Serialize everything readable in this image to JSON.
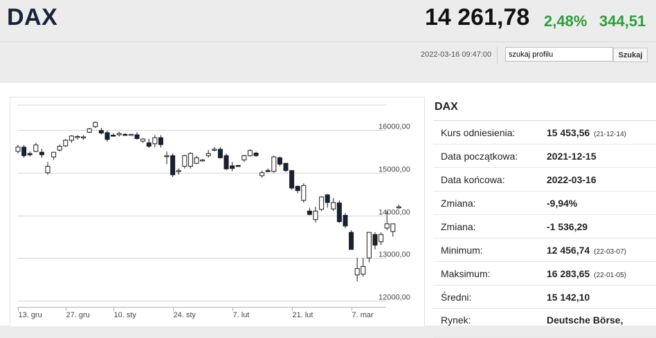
{
  "header": {
    "title": "DAX",
    "price": "14 261,78",
    "change_pct": "2,48%",
    "change_abs": "344,51",
    "timestamp": "2022-03-16 09:47:00",
    "search_value": "szukaj profilu",
    "search_button": "Szukaj"
  },
  "colors": {
    "positive": "#2e9e3a",
    "title": "#152338",
    "candle_down": "#15233a"
  },
  "info": {
    "title": "DAX",
    "rows": [
      {
        "label": "Kurs odniesienia:",
        "value": "15 453,56",
        "sub": "(21-12-14)"
      },
      {
        "label": "Data początkowa:",
        "value": "2021-12-15",
        "sub": ""
      },
      {
        "label": "Data końcowa:",
        "value": "2022-03-16",
        "sub": ""
      },
      {
        "label": "Zmiana:",
        "value": "-9,94%",
        "sub": ""
      },
      {
        "label": "Zmiana:",
        "value": "-1 536,29",
        "sub": ""
      },
      {
        "label": "Minimum:",
        "value": "12 456,74",
        "sub": "(22-03-07)"
      },
      {
        "label": "Maksimum:",
        "value": "16 283,65",
        "sub": "(22-01-05)"
      },
      {
        "label": "Średni:",
        "value": "15 142,10",
        "sub": ""
      },
      {
        "label": "Rynek:",
        "value": "Deutsche Börse,",
        "sub": ""
      }
    ]
  },
  "chart_data": {
    "type": "candlestick",
    "y_ticks": [
      "16000,00",
      "15000,00",
      "14000,00",
      "13000,00",
      "12000,00"
    ],
    "y_tick_values": [
      16000,
      15000,
      14000,
      13000,
      12000
    ],
    "ylim": [
      11900,
      16700
    ],
    "x_ticks": [
      {
        "label": "13. gru",
        "index": 0
      },
      {
        "label": "27. gru",
        "index": 8
      },
      {
        "label": "10. sty",
        "index": 16
      },
      {
        "label": "24. sty",
        "index": 26
      },
      {
        "label": "7. lut",
        "index": 36
      },
      {
        "label": "21. lut",
        "index": 46
      },
      {
        "label": "7. mar",
        "index": 56
      }
    ],
    "candles": [
      {
        "o": 15500,
        "h": 15650,
        "l": 15450,
        "c": 15600
      },
      {
        "o": 15600,
        "h": 15650,
        "l": 15350,
        "c": 15400
      },
      {
        "o": 15450,
        "h": 15500,
        "l": 15380,
        "c": 15420
      },
      {
        "o": 15500,
        "h": 15700,
        "l": 15480,
        "c": 15650
      },
      {
        "o": 15480,
        "h": 15560,
        "l": 15350,
        "c": 15420
      },
      {
        "o": 15000,
        "h": 15250,
        "l": 14950,
        "c": 15150
      },
      {
        "o": 15370,
        "h": 15480,
        "l": 15300,
        "c": 15480
      },
      {
        "o": 15530,
        "h": 15660,
        "l": 15500,
        "c": 15620
      },
      {
        "o": 15630,
        "h": 15790,
        "l": 15600,
        "c": 15760
      },
      {
        "o": 15760,
        "h": 15880,
        "l": 15700,
        "c": 15860
      },
      {
        "o": 15830,
        "h": 15880,
        "l": 15780,
        "c": 15850
      },
      {
        "o": 15830,
        "h": 15880,
        "l": 15770,
        "c": 15840
      },
      {
        "o": 15950,
        "h": 16050,
        "l": 15930,
        "c": 16030
      },
      {
        "o": 16080,
        "h": 16200,
        "l": 16050,
        "c": 16180
      },
      {
        "o": 15990,
        "h": 16050,
        "l": 15900,
        "c": 15930
      },
      {
        "o": 15940,
        "h": 15980,
        "l": 15730,
        "c": 15780
      },
      {
        "o": 15880,
        "h": 15920,
        "l": 15860,
        "c": 15870
      },
      {
        "o": 15890,
        "h": 15960,
        "l": 15850,
        "c": 15920
      },
      {
        "o": 15900,
        "h": 15930,
        "l": 15870,
        "c": 15880
      },
      {
        "o": 15890,
        "h": 15910,
        "l": 15880,
        "c": 15900
      },
      {
        "o": 15890,
        "h": 15950,
        "l": 15780,
        "c": 15800
      },
      {
        "o": 15740,
        "h": 15810,
        "l": 15700,
        "c": 15790
      },
      {
        "o": 15700,
        "h": 15800,
        "l": 15580,
        "c": 15620
      },
      {
        "o": 15680,
        "h": 15880,
        "l": 15600,
        "c": 15820
      },
      {
        "o": 15820,
        "h": 15880,
        "l": 15590,
        "c": 15660
      },
      {
        "o": 15390,
        "h": 15500,
        "l": 15200,
        "c": 15400
      },
      {
        "o": 15400,
        "h": 15450,
        "l": 14900,
        "c": 14950
      },
      {
        "o": 15040,
        "h": 15100,
        "l": 14950,
        "c": 15050
      },
      {
        "o": 15150,
        "h": 15420,
        "l": 15100,
        "c": 15400
      },
      {
        "o": 15150,
        "h": 15480,
        "l": 15100,
        "c": 15450
      },
      {
        "o": 15220,
        "h": 15400,
        "l": 15200,
        "c": 15350
      },
      {
        "o": 15290,
        "h": 15320,
        "l": 15260,
        "c": 15300
      },
      {
        "o": 15400,
        "h": 15530,
        "l": 15350,
        "c": 15450
      },
      {
        "o": 15550,
        "h": 15600,
        "l": 15500,
        "c": 15550
      },
      {
        "o": 15550,
        "h": 15600,
        "l": 15330,
        "c": 15350
      },
      {
        "o": 15400,
        "h": 15450,
        "l": 15060,
        "c": 15090
      },
      {
        "o": 15160,
        "h": 15250,
        "l": 15040,
        "c": 15100
      },
      {
        "o": 15170,
        "h": 15180,
        "l": 15150,
        "c": 15150
      },
      {
        "o": 15300,
        "h": 15420,
        "l": 15250,
        "c": 15400
      },
      {
        "o": 15400,
        "h": 15550,
        "l": 15380,
        "c": 15520
      },
      {
        "o": 15460,
        "h": 15490,
        "l": 15370,
        "c": 15400
      },
      {
        "o": 14930,
        "h": 15050,
        "l": 14880,
        "c": 15000
      },
      {
        "o": 15050,
        "h": 15100,
        "l": 15020,
        "c": 15040
      },
      {
        "o": 15030,
        "h": 15400,
        "l": 15000,
        "c": 15370
      },
      {
        "o": 15350,
        "h": 15380,
        "l": 15150,
        "c": 15200
      },
      {
        "o": 15220,
        "h": 15230,
        "l": 15020,
        "c": 15050
      },
      {
        "o": 15050,
        "h": 15060,
        "l": 14600,
        "c": 14640
      },
      {
        "o": 14680,
        "h": 14700,
        "l": 14520,
        "c": 14580
      },
      {
        "o": 14350,
        "h": 14750,
        "l": 14300,
        "c": 14700
      },
      {
        "o": 14100,
        "h": 14180,
        "l": 14000,
        "c": 14020
      },
      {
        "o": 13900,
        "h": 14200,
        "l": 13830,
        "c": 14100
      },
      {
        "o": 14140,
        "h": 14450,
        "l": 14100,
        "c": 14430
      },
      {
        "o": 14480,
        "h": 14500,
        "l": 14180,
        "c": 14300
      },
      {
        "o": 14150,
        "h": 14400,
        "l": 14100,
        "c": 14300
      },
      {
        "o": 14290,
        "h": 14350,
        "l": 13820,
        "c": 13850
      },
      {
        "o": 14000,
        "h": 14050,
        "l": 13700,
        "c": 13750
      },
      {
        "o": 13600,
        "h": 13650,
        "l": 13200,
        "c": 13200
      },
      {
        "o": 12600,
        "h": 13000,
        "l": 12450,
        "c": 12750
      },
      {
        "o": 12620,
        "h": 13000,
        "l": 12560,
        "c": 12800
      },
      {
        "o": 13000,
        "h": 13600,
        "l": 12900,
        "c": 13600
      },
      {
        "o": 13550,
        "h": 13600,
        "l": 13200,
        "c": 13300
      },
      {
        "o": 13380,
        "h": 13600,
        "l": 13300,
        "c": 13550
      },
      {
        "o": 13700,
        "h": 14100,
        "l": 13650,
        "c": 13800
      },
      {
        "o": 13620,
        "h": 13800,
        "l": 13500,
        "c": 13800
      },
      {
        "o": 14200,
        "h": 14250,
        "l": 14150,
        "c": 14200
      }
    ]
  }
}
